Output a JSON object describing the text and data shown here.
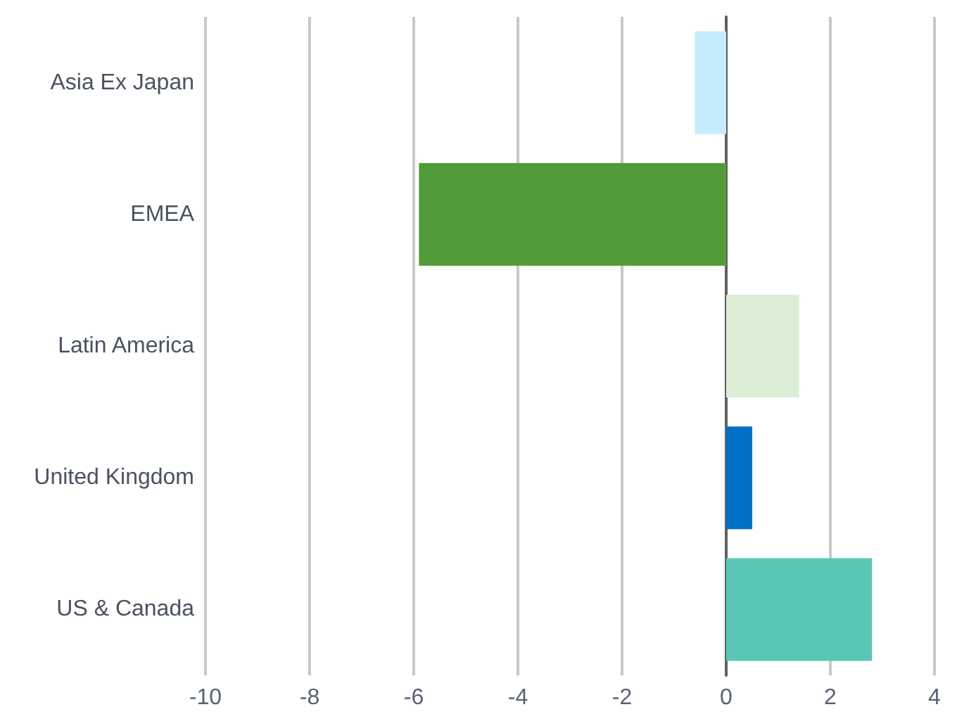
{
  "chart_data": {
    "type": "bar",
    "orientation": "horizontal",
    "categories": [
      "Asia Ex Japan",
      "EMEA",
      "Latin America",
      "United Kingdom",
      "US & Canada"
    ],
    "values": [
      -0.6,
      -5.9,
      1.4,
      0.5,
      2.8
    ],
    "colors": [
      "#c5ecfc",
      "#519b38",
      "#dbeed5",
      "#0070c4",
      "#5ac7b4"
    ],
    "xlim": [
      -10,
      4
    ],
    "xticks": [
      -10,
      -8,
      -6,
      -4,
      -2,
      0,
      2,
      4
    ],
    "grid": "x"
  }
}
